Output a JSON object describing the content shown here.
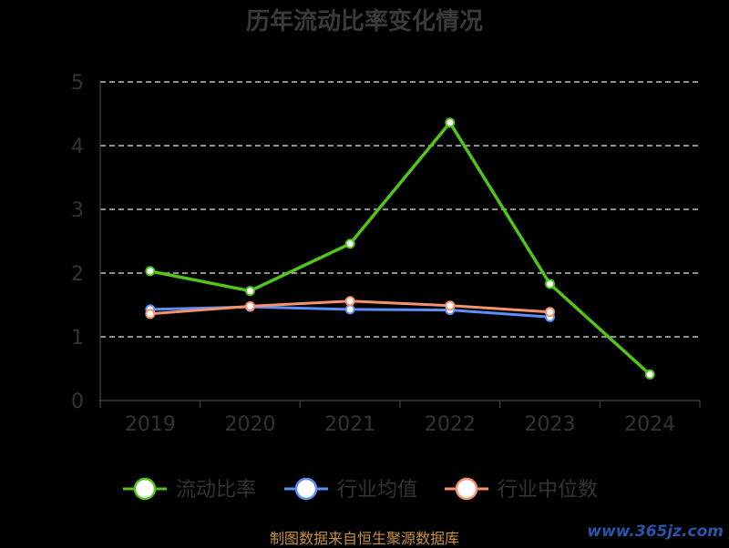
{
  "chart_data": {
    "type": "line",
    "title": "历年流动比率变化情况",
    "categories": [
      "2019",
      "2020",
      "2021",
      "2022",
      "2023",
      "2024"
    ],
    "ylim": [
      0,
      5
    ],
    "yticks": [
      "0",
      "1",
      "2",
      "3",
      "4",
      "5"
    ],
    "grid": true,
    "legend_position": "bottom",
    "series": [
      {
        "name": "流动比率",
        "color": "#52c41a",
        "values": [
          2.03,
          1.72,
          2.46,
          4.36,
          1.83,
          0.41
        ]
      },
      {
        "name": "行业均值",
        "color": "#5b8ff9",
        "values": [
          1.43,
          1.47,
          1.43,
          1.42,
          1.31,
          null
        ]
      },
      {
        "name": "行业中位数",
        "color": "#f7936c",
        "values": [
          1.36,
          1.48,
          1.56,
          1.49,
          1.39,
          null
        ]
      }
    ]
  },
  "footer": {
    "source": "制图数据来自恒生聚源数据库",
    "watermark": "www.365jz.com"
  }
}
